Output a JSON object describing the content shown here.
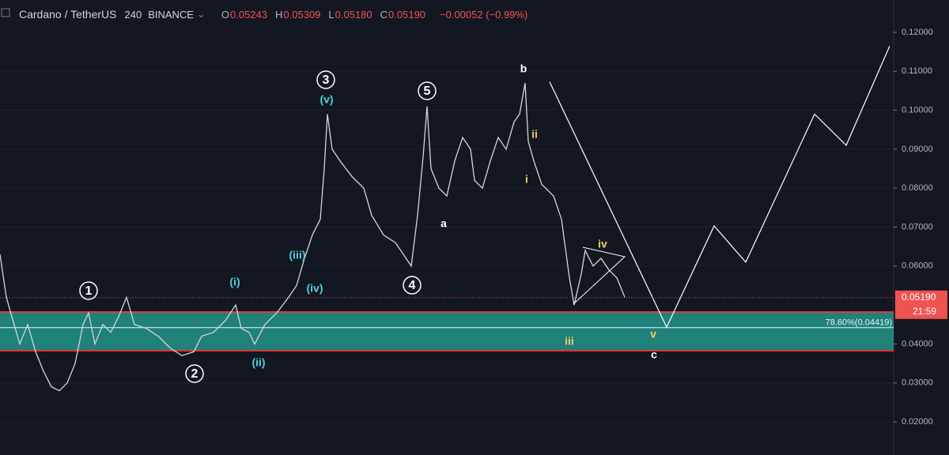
{
  "header": {
    "symbol": "Cardano / TetherUS",
    "interval": "240",
    "exchange": "BINANCE",
    "ohlc": [
      {
        "key": "O",
        "value": "0.05243"
      },
      {
        "key": "H",
        "value": "0.05309"
      },
      {
        "key": "L",
        "value": "0.05180"
      },
      {
        "key": "C",
        "value": "0.05190"
      }
    ],
    "change": "−0.00052 (−0.99%)"
  },
  "chart_data": {
    "type": "line",
    "xlim": [
      0,
      1130
    ],
    "ylim": [
      0.0115,
      0.1283
    ],
    "yticks": [
      {
        "value": 0.12,
        "label": "0.12000"
      },
      {
        "value": 0.11,
        "label": "0.11000"
      },
      {
        "value": 0.1,
        "label": "0.10000"
      },
      {
        "value": 0.09,
        "label": "0.09000"
      },
      {
        "value": 0.08,
        "label": "0.08000"
      },
      {
        "value": 0.07,
        "label": "0.07000"
      },
      {
        "value": 0.06,
        "label": "0.06000"
      },
      {
        "value": 0.04,
        "label": "0.04000"
      },
      {
        "value": 0.03,
        "label": "0.03000"
      },
      {
        "value": 0.02,
        "label": "0.02000"
      }
    ],
    "series": [
      {
        "name": "Price",
        "color": "#cfd8dc",
        "x": [
          0,
          8,
          15,
          25,
          35,
          45,
          55,
          65,
          75,
          85,
          95,
          105,
          112,
          120,
          130,
          140,
          150,
          160,
          170,
          185,
          200,
          215,
          230,
          245,
          255,
          270,
          285,
          298,
          305,
          315,
          322,
          335,
          350,
          365,
          375,
          385,
          395,
          405,
          410,
          414,
          420,
          430,
          445,
          460,
          470,
          485,
          500,
          510,
          520,
          528,
          535,
          540,
          545,
          555,
          565,
          575,
          585,
          595,
          600,
          610,
          620,
          630,
          640,
          650,
          657,
          664,
          668,
          675,
          685,
          700,
          710,
          716,
          720,
          726,
          735,
          740,
          750,
          760,
          770,
          780,
          790
        ],
        "values": [
          0.063,
          0.052,
          0.047,
          0.04,
          0.045,
          0.038,
          0.033,
          0.029,
          0.028,
          0.03,
          0.035,
          0.045,
          0.048,
          0.04,
          0.045,
          0.043,
          0.047,
          0.052,
          0.045,
          0.044,
          0.042,
          0.039,
          0.037,
          0.038,
          0.042,
          0.043,
          0.046,
          0.05,
          0.044,
          0.043,
          0.04,
          0.045,
          0.048,
          0.052,
          0.055,
          0.062,
          0.068,
          0.072,
          0.085,
          0.099,
          0.09,
          0.087,
          0.083,
          0.08,
          0.073,
          0.068,
          0.066,
          0.063,
          0.06,
          0.073,
          0.088,
          0.101,
          0.085,
          0.08,
          0.078,
          0.087,
          0.093,
          0.09,
          0.082,
          0.08,
          0.087,
          0.093,
          0.09,
          0.097,
          0.099,
          0.107,
          0.092,
          0.087,
          0.081,
          0.078,
          0.072,
          0.063,
          0.057,
          0.05,
          0.058,
          0.064,
          0.06,
          0.062,
          0.059,
          0.057,
          0.052
        ]
      },
      {
        "name": "Projection",
        "color": "#ffffff",
        "x": [
          695,
          843,
          903,
          943,
          1030,
          1070,
          1125
        ],
        "values": [
          0.1073,
          0.0443,
          0.0703,
          0.061,
          0.099,
          0.091,
          0.1165
        ]
      }
    ],
    "last_price": {
      "value": 0.0519,
      "label": "0.05190",
      "countdown": "21:59",
      "color": "#ef5350"
    },
    "fib_zone": {
      "top": 0.0482,
      "bottom": 0.0383,
      "level": 0.04419,
      "label": "78.60%(0.04419)",
      "color": "#26a69a"
    },
    "annotations": [
      {
        "text": "1",
        "circled": true,
        "color": "#ffffff"
      },
      {
        "text": "2",
        "circled": true,
        "color": "#ffffff"
      },
      {
        "text": "3",
        "circled": true,
        "color": "#ffffff"
      },
      {
        "text": "4",
        "circled": true,
        "color": "#ffffff"
      },
      {
        "text": "5",
        "circled": true,
        "color": "#ffffff"
      },
      {
        "text": "(i)",
        "color": "#4dd0e1"
      },
      {
        "text": "(ii)",
        "color": "#4dd0e1"
      },
      {
        "text": "(iii)",
        "color": "#4dd0e1"
      },
      {
        "text": "(iv)",
        "color": "#4dd0e1"
      },
      {
        "text": "(v)",
        "color": "#4dd0e1"
      },
      {
        "text": "a",
        "color": "#ffffff"
      },
      {
        "text": "b",
        "color": "#ffffff"
      },
      {
        "text": "c",
        "color": "#ffffff"
      },
      {
        "text": "i",
        "color": "#f0d060"
      },
      {
        "text": "ii",
        "color": "#f0d060"
      },
      {
        "text": "iii",
        "color": "#f0d060"
      },
      {
        "text": "iv",
        "color": "#f0d060"
      },
      {
        "text": "v",
        "color": "#f0d060"
      }
    ]
  }
}
